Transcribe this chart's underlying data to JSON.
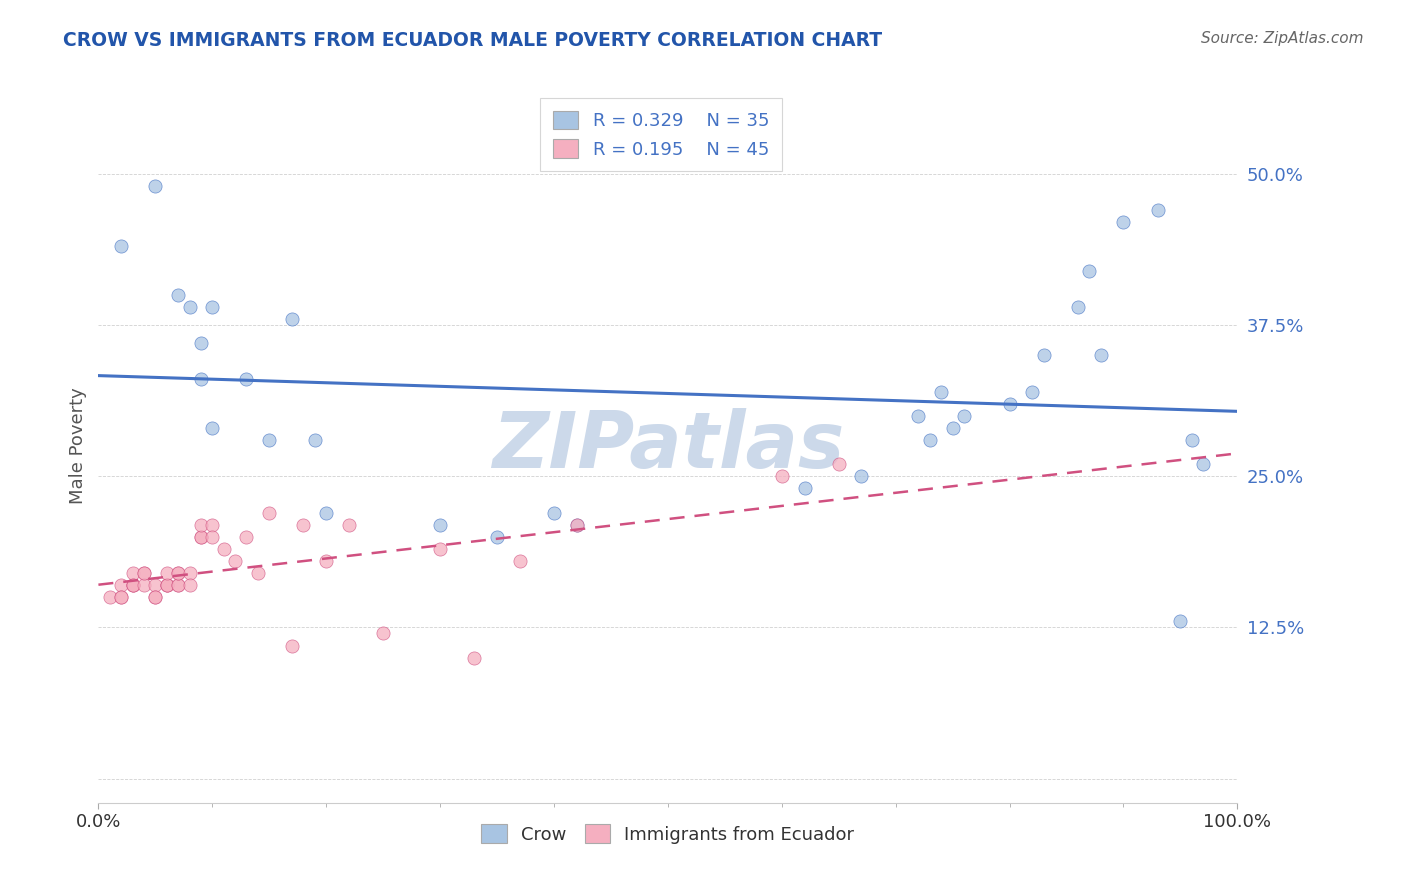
{
  "title": "CROW VS IMMIGRANTS FROM ECUADOR MALE POVERTY CORRELATION CHART",
  "source": "Source: ZipAtlas.com",
  "ylabel": "Male Poverty",
  "xlim": [
    0.0,
    1.0
  ],
  "ylim": [
    -0.02,
    0.57
  ],
  "ytick_vals": [
    0.0,
    0.125,
    0.25,
    0.375,
    0.5
  ],
  "ytick_labels": [
    "",
    "12.5%",
    "25.0%",
    "37.5%",
    "50.0%"
  ],
  "legend_r1": "0.329",
  "legend_n1": "35",
  "legend_r2": "0.195",
  "legend_n2": "45",
  "color_crow": "#a8c4e2",
  "color_ecuador": "#f5afc0",
  "line_color_crow": "#4472c4",
  "line_color_ecuador": "#d05080",
  "watermark_color": "#ccd9ea",
  "background_color": "#ffffff",
  "crow_x": [
    0.02,
    0.05,
    0.07,
    0.08,
    0.09,
    0.09,
    0.1,
    0.1,
    0.13,
    0.15,
    0.17,
    0.19,
    0.2,
    0.3,
    0.35,
    0.4,
    0.42,
    0.62,
    0.67,
    0.72,
    0.73,
    0.74,
    0.75,
    0.76,
    0.8,
    0.82,
    0.83,
    0.86,
    0.87,
    0.88,
    0.9,
    0.93,
    0.95,
    0.96,
    0.97
  ],
  "crow_y": [
    0.44,
    0.49,
    0.4,
    0.39,
    0.36,
    0.33,
    0.39,
    0.29,
    0.33,
    0.28,
    0.38,
    0.28,
    0.22,
    0.21,
    0.2,
    0.22,
    0.21,
    0.24,
    0.25,
    0.3,
    0.28,
    0.32,
    0.29,
    0.3,
    0.31,
    0.32,
    0.35,
    0.39,
    0.42,
    0.35,
    0.46,
    0.47,
    0.13,
    0.28,
    0.26
  ],
  "ecuador_x": [
    0.01,
    0.02,
    0.02,
    0.02,
    0.03,
    0.03,
    0.03,
    0.03,
    0.04,
    0.04,
    0.04,
    0.05,
    0.05,
    0.05,
    0.06,
    0.06,
    0.06,
    0.06,
    0.07,
    0.07,
    0.07,
    0.07,
    0.08,
    0.08,
    0.09,
    0.09,
    0.09,
    0.1,
    0.1,
    0.11,
    0.12,
    0.13,
    0.14,
    0.15,
    0.17,
    0.18,
    0.2,
    0.22,
    0.25,
    0.3,
    0.33,
    0.37,
    0.42,
    0.6,
    0.65
  ],
  "ecuador_y": [
    0.15,
    0.16,
    0.15,
    0.15,
    0.16,
    0.16,
    0.17,
    0.16,
    0.17,
    0.16,
    0.17,
    0.16,
    0.15,
    0.15,
    0.16,
    0.16,
    0.16,
    0.17,
    0.16,
    0.16,
    0.17,
    0.17,
    0.17,
    0.16,
    0.2,
    0.2,
    0.21,
    0.21,
    0.2,
    0.19,
    0.18,
    0.2,
    0.17,
    0.22,
    0.11,
    0.21,
    0.18,
    0.21,
    0.12,
    0.19,
    0.1,
    0.18,
    0.21,
    0.25,
    0.26
  ]
}
